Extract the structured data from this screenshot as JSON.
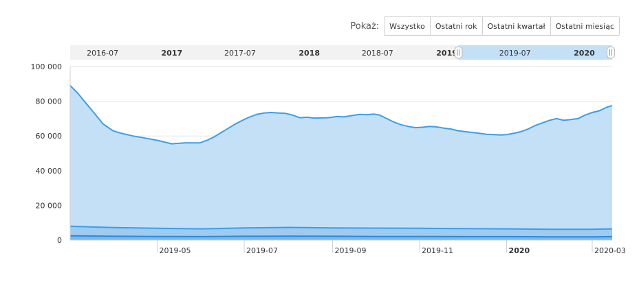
{
  "range_selector": {
    "label": "Pokaż:",
    "buttons": [
      "Wszystko",
      "Ostatni rok",
      "Ostatni kwartał",
      "Ostatni miesiąc"
    ]
  },
  "colors": {
    "outer_line": "#3b9ee6",
    "outer_fill": "#c4e0f7",
    "middle_line": "#3b9ee6",
    "middle_fill": "#9fcbf0",
    "inner_line": "#2b8ad8",
    "inner_fill": "#7fb8e8",
    "grid": "#e6e6e6",
    "navigator_bg": "#f2f2f2",
    "navigator_selected": "#c4e0f7"
  },
  "navigator": {
    "labels": [
      {
        "text": "2016-07",
        "bold": false
      },
      {
        "text": "2017",
        "bold": true
      },
      {
        "text": "2017-07",
        "bold": false
      },
      {
        "text": "2018",
        "bold": true
      },
      {
        "text": "2018-07",
        "bold": false
      },
      {
        "text": "2019",
        "bold": true
      },
      {
        "text": "2019-07",
        "bold": false
      },
      {
        "text": "2020",
        "bold": true
      }
    ],
    "selection": {
      "from": "2019-02",
      "to": "2020-03"
    }
  },
  "chart_data": {
    "type": "area",
    "ylim": [
      0,
      100000
    ],
    "y_ticks": [
      "0",
      "20 000",
      "40 000",
      "60 000",
      "80 000",
      "100 000"
    ],
    "x_ticks": [
      {
        "label": "2019-05",
        "bold": false
      },
      {
        "label": "2019-07",
        "bold": false
      },
      {
        "label": "2019-09",
        "bold": false
      },
      {
        "label": "2019-11",
        "bold": false
      },
      {
        "label": "2020",
        "bold": true
      },
      {
        "label": "2020-03",
        "bold": false
      }
    ],
    "x_range": [
      "2019-03-01",
      "2020-03-15"
    ],
    "x_tick_dates": [
      "2019-05-01",
      "2019-07-01",
      "2019-09-01",
      "2019-11-01",
      "2020-01-01",
      "2020-03-01"
    ],
    "grid": true,
    "series": [
      {
        "x": [
          "2019-03-01",
          "2019-03-06",
          "2019-03-11",
          "2019-03-18",
          "2019-03-24",
          "2019-03-31",
          "2019-04-06",
          "2019-04-14",
          "2019-04-21",
          "2019-05-01",
          "2019-05-11",
          "2019-05-21",
          "2019-05-31",
          "2019-06-05",
          "2019-06-10",
          "2019-06-15",
          "2019-06-20",
          "2019-06-25",
          "2019-07-01",
          "2019-07-05",
          "2019-07-10",
          "2019-07-15",
          "2019-07-20",
          "2019-07-25",
          "2019-07-30",
          "2019-08-04",
          "2019-08-09",
          "2019-08-14",
          "2019-08-19",
          "2019-08-24",
          "2019-08-29",
          "2019-09-04",
          "2019-09-09",
          "2019-09-15",
          "2019-09-20",
          "2019-09-25",
          "2019-09-30",
          "2019-10-04",
          "2019-10-09",
          "2019-10-14",
          "2019-10-19",
          "2019-10-24",
          "2019-10-29",
          "2019-11-03",
          "2019-11-08",
          "2019-11-13",
          "2019-11-18",
          "2019-11-23",
          "2019-11-28",
          "2019-12-03",
          "2019-12-08",
          "2019-12-13",
          "2019-12-18",
          "2019-12-23",
          "2019-12-28",
          "2020-01-01",
          "2020-01-06",
          "2020-01-11",
          "2020-01-16",
          "2020-01-21",
          "2020-01-26",
          "2020-01-31",
          "2020-02-05",
          "2020-02-10",
          "2020-02-15",
          "2020-02-20",
          "2020-02-25",
          "2020-03-01",
          "2020-03-06",
          "2020-03-11",
          "2020-03-15"
        ],
        "values": [
          89000,
          85000,
          80000,
          73000,
          67000,
          63000,
          61500,
          60000,
          59000,
          57500,
          55500,
          56000,
          56000,
          57500,
          59500,
          62000,
          64500,
          67000,
          69500,
          71000,
          72500,
          73200,
          73500,
          73200,
          73000,
          72000,
          70500,
          70800,
          70300,
          70400,
          70500,
          71200,
          71000,
          71800,
          72400,
          72200,
          72600,
          72000,
          70000,
          68000,
          66500,
          65500,
          64800,
          65000,
          65500,
          65200,
          64500,
          64000,
          63000,
          62500,
          62000,
          61500,
          61000,
          60800,
          60600,
          60800,
          61500,
          62500,
          64000,
          66000,
          67500,
          69000,
          70000,
          69000,
          69500,
          70000,
          72000,
          73500,
          74500,
          76500,
          77500
        ]
      },
      {
        "x": [
          "2019-03-01",
          "2019-04-01",
          "2019-05-01",
          "2019-06-01",
          "2019-07-01",
          "2019-08-01",
          "2019-09-01",
          "2019-10-01",
          "2019-11-01",
          "2019-12-01",
          "2020-01-01",
          "2020-02-01",
          "2020-03-01",
          "2020-03-15"
        ],
        "values": [
          8000,
          7200,
          6800,
          6500,
          7000,
          7300,
          7000,
          6900,
          6800,
          6600,
          6500,
          6200,
          6200,
          6500
        ]
      },
      {
        "x": [
          "2019-03-01",
          "2019-04-01",
          "2019-05-01",
          "2019-06-01",
          "2019-07-01",
          "2019-08-01",
          "2019-09-01",
          "2019-10-01",
          "2019-11-01",
          "2019-12-01",
          "2020-01-01",
          "2020-02-01",
          "2020-03-01",
          "2020-03-15"
        ],
        "values": [
          2500,
          2200,
          2100,
          2000,
          2200,
          2300,
          2200,
          2100,
          2100,
          2000,
          2000,
          1900,
          1900,
          2000
        ]
      }
    ]
  }
}
